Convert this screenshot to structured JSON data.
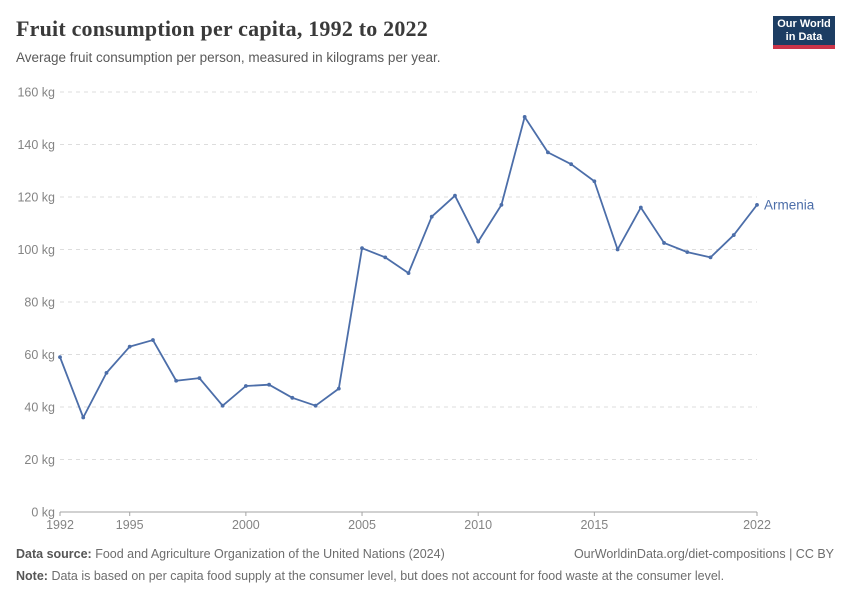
{
  "header": {
    "title": "Fruit consumption per capita, 1992 to 2022",
    "subtitle": "Average fruit consumption per person, measured in kilograms per year.",
    "logo": {
      "line1": "Our World",
      "line2": "in Data"
    }
  },
  "colors": {
    "line": "#4c6ea9",
    "series_label": "#4c6ea9",
    "grid": "#dddddd",
    "axis": "#a3a3a3",
    "tick_label": "#848484",
    "logo_bg": "#1d3d63",
    "logo_stripe": "#cb3449"
  },
  "chart_data": {
    "type": "line",
    "title": "Fruit consumption per capita, 1992 to 2022",
    "subtitle": "Average fruit consumption per person, measured in kilograms per year.",
    "unit": "kg",
    "xlabel": "",
    "ylabel": "",
    "xlim": [
      1992,
      2022
    ],
    "ylim": [
      0,
      160
    ],
    "grid": "horizontal-dashed",
    "legend_position": "end-of-line-label",
    "xticks": [
      1992,
      1995,
      2000,
      2005,
      2010,
      2015,
      2022
    ],
    "yticks": [
      0,
      20,
      40,
      60,
      80,
      100,
      120,
      140,
      160
    ],
    "ytick_labels": [
      "0 kg",
      "20 kg",
      "40 kg",
      "60 kg",
      "80 kg",
      "100 kg",
      "120 kg",
      "140 kg",
      "160 kg"
    ],
    "x": [
      1992,
      1993,
      1994,
      1995,
      1996,
      1997,
      1998,
      1999,
      2000,
      2001,
      2002,
      2003,
      2004,
      2005,
      2006,
      2007,
      2008,
      2009,
      2010,
      2011,
      2012,
      2013,
      2014,
      2015,
      2016,
      2017,
      2018,
      2019,
      2020,
      2021,
      2022
    ],
    "series": [
      {
        "name": "Armenia",
        "values": [
          59,
          36,
          53,
          63,
          65.5,
          50,
          51,
          40.5,
          48,
          48.5,
          43.5,
          40.5,
          47,
          100.5,
          97,
          91,
          112.5,
          120.5,
          103,
          117,
          150.5,
          137,
          132.5,
          126,
          100,
          116,
          102.5,
          99,
          97,
          105.5,
          117
        ]
      }
    ]
  },
  "footer": {
    "source_label": "Data source:",
    "source_text": "Food and Agriculture Organization of the United Nations (2024)",
    "link_text": "OurWorldinData.org/diet-compositions | CC BY",
    "note_label": "Note:",
    "note_text": "Data is based on per capita food supply at the consumer level, but does not account for food waste at the consumer level."
  }
}
